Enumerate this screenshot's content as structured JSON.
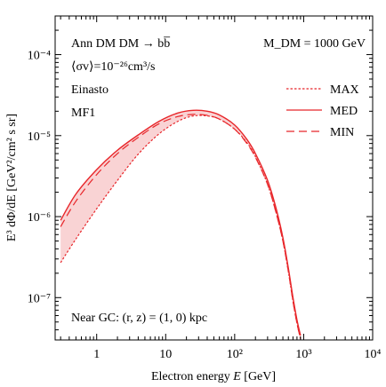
{
  "chart_data": {
    "type": "line",
    "xlabel_prefix": "Electron energy ",
    "xlabel_var": "E",
    "xlabel_unit": " [GeV]",
    "ylabel": "E³ dΦ/dE [GeV²/cm² s sr]",
    "xscale": "log",
    "yscale": "log",
    "xlim": [
      0.25,
      10000
    ],
    "ylim": [
      3e-08,
      0.0003
    ],
    "x_ticks": [
      {
        "value": 1,
        "label": "1"
      },
      {
        "value": 10,
        "label": "10"
      },
      {
        "value": 100,
        "label": "10²"
      },
      {
        "value": 1000,
        "label": "10³"
      },
      {
        "value": 10000,
        "label": "10⁴"
      }
    ],
    "y_ticks": [
      {
        "value": 1e-07,
        "label": "10⁻⁷"
      },
      {
        "value": 1e-06,
        "label": "10⁻⁶"
      },
      {
        "value": 1e-05,
        "label": "10⁻⁵"
      },
      {
        "value": 0.0001,
        "label": "10⁻⁴"
      }
    ],
    "annotations": {
      "line1": "Ann DM DM → bb̅",
      "line2": "⟨σv⟩=10⁻²⁶cm³/s",
      "line3": "Einasto",
      "line4": "MF1",
      "mass": "M_DM = 1000 GeV",
      "location": "Near GC: (r, z) = (1, 0) kpc"
    },
    "legend_position": "right",
    "colors": {
      "curve": "#e8262a",
      "band": "#f9d3d4"
    },
    "series": [
      {
        "name": "MAX",
        "style": "dotted",
        "x": [
          0.3,
          0.5,
          1,
          2,
          4,
          8,
          15,
          25,
          40,
          60,
          100,
          150,
          200,
          300,
          400,
          500,
          600,
          700,
          800,
          900
        ],
        "y": [
          2.7e-07,
          5.3e-07,
          1.25e-06,
          2.8e-06,
          5.9e-06,
          1.05e-05,
          1.5e-05,
          1.75e-05,
          1.75e-05,
          1.6e-05,
          1.2e-05,
          8.2e-06,
          5.5e-06,
          2.5e-06,
          1.1e-06,
          5e-07,
          2.1e-07,
          9e-08,
          4.8e-08,
          3.1e-08
        ]
      },
      {
        "name": "MED",
        "style": "solid",
        "x": [
          0.3,
          0.5,
          1,
          2,
          4,
          8,
          15,
          25,
          40,
          60,
          100,
          150,
          200,
          300,
          400,
          500,
          600,
          700,
          800,
          900
        ],
        "y": [
          9e-07,
          1.9e-06,
          3.8e-06,
          6.6e-06,
          1.02e-05,
          1.5e-05,
          1.9e-05,
          2.05e-05,
          2e-05,
          1.8e-05,
          1.35e-05,
          9e-06,
          6e-06,
          2.8e-06,
          1.25e-06,
          5.5e-07,
          2.3e-07,
          1e-07,
          5.3e-08,
          3.4e-08
        ]
      },
      {
        "name": "MIN",
        "style": "dashed",
        "x": [
          0.3,
          0.5,
          1,
          2,
          4,
          8,
          15,
          25,
          40,
          60,
          100,
          150,
          200,
          300,
          400,
          500,
          600,
          700,
          800,
          900
        ],
        "y": [
          7.5e-07,
          1.55e-06,
          3.3e-06,
          6e-06,
          9.5e-06,
          1.4e-05,
          1.72e-05,
          1.83e-05,
          1.78e-05,
          1.6e-05,
          1.2e-05,
          8e-06,
          5.4e-06,
          2.5e-06,
          1.1e-06,
          5e-07,
          2.1e-07,
          9e-08,
          4.8e-08,
          3.1e-08
        ]
      }
    ]
  }
}
